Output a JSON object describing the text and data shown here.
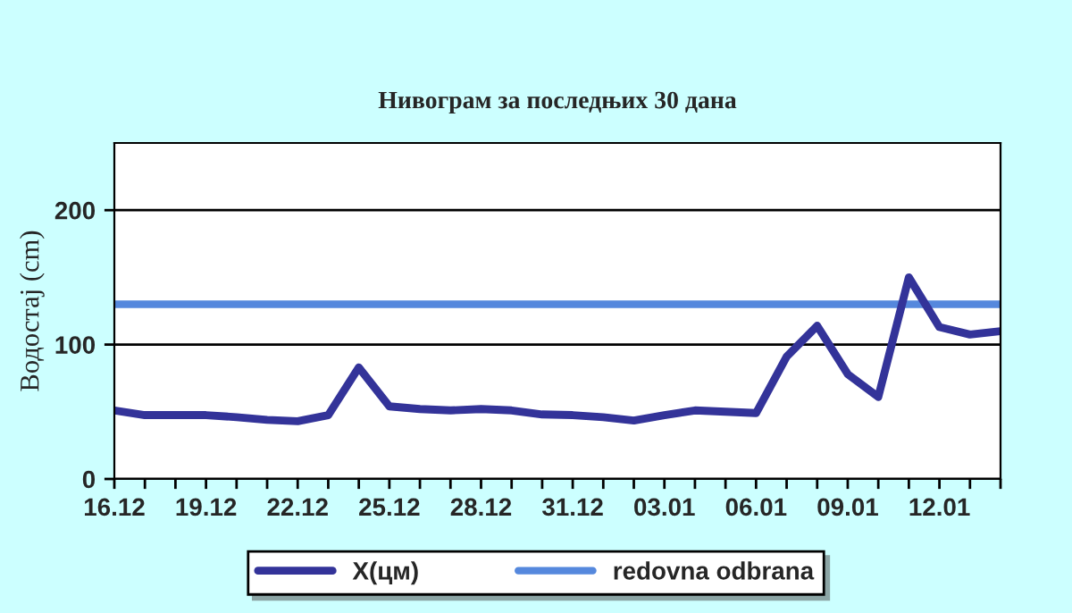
{
  "chart_data": {
    "type": "line",
    "title": "Нивограм за последњих 30 дана",
    "ylabel": "Водостај (cm)",
    "categories": [
      "16.12",
      null,
      null,
      "19.12",
      null,
      null,
      "22.12",
      null,
      null,
      "25.12",
      null,
      null,
      "28.12",
      null,
      null,
      "31.12",
      null,
      null,
      "03.01",
      null,
      null,
      "06.01",
      null,
      null,
      "09.01",
      null,
      null,
      "12.01",
      null,
      null
    ],
    "series": [
      {
        "name": "X(цм)",
        "color": "#333399",
        "values": [
          51,
          47.5,
          47.5,
          47.5,
          46,
          44,
          43,
          47.5,
          83,
          54,
          52,
          51,
          52,
          51,
          48,
          47.5,
          46,
          43.5,
          47.5,
          51,
          50,
          49,
          91,
          114,
          78,
          61,
          150,
          113,
          107.5,
          110
        ]
      }
    ],
    "ref_lines": [
      {
        "axis": "y",
        "value": 130,
        "label": "redovna odbrana",
        "color": "#5588dd"
      }
    ],
    "ylim": [
      0,
      250
    ],
    "yticks": [
      0,
      100,
      200
    ],
    "grid": "y",
    "legend": "bottom",
    "marker": "none",
    "line_style": "solid"
  }
}
